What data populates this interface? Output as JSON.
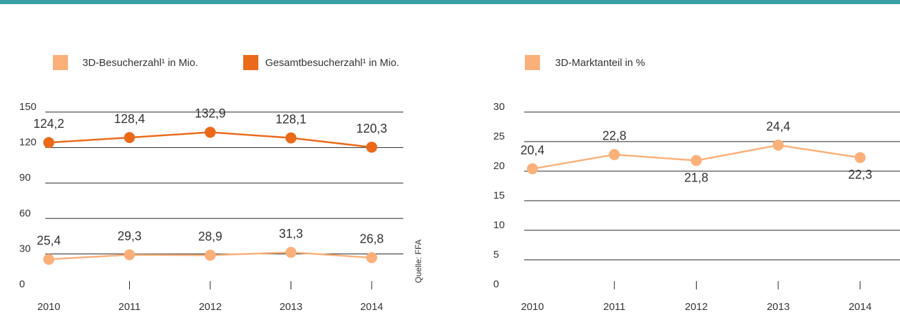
{
  "chart_data": [
    {
      "type": "line",
      "categories": [
        "2010",
        "2011",
        "2012",
        "2013",
        "2014"
      ],
      "series": [
        {
          "name": "3D-Besucherzahl¹ in Mio.",
          "color": "#fbb07a",
          "values": [
            25.4,
            29.3,
            28.9,
            31.3,
            26.8
          ],
          "value_labels": [
            "25,4",
            "29,3",
            "28,9",
            "31,3",
            "26,8"
          ]
        },
        {
          "name": "Gesamtbesucherzahl¹ in Mio.",
          "color": "#ea6a1a",
          "values": [
            124.2,
            128.4,
            132.9,
            128.1,
            120.3
          ],
          "value_labels": [
            "124,2",
            "128,4",
            "132,9",
            "128,1",
            "120,3"
          ]
        }
      ],
      "ylim": [
        0,
        150
      ],
      "yticks": [
        0,
        30,
        60,
        90,
        120,
        150
      ],
      "grid": true,
      "source": "Quelle: FFA"
    },
    {
      "type": "line",
      "categories": [
        "2010",
        "2011",
        "2012",
        "2013",
        "2014"
      ],
      "series": [
        {
          "name": "3D-Marktanteil in %",
          "color": "#fbb07a",
          "values": [
            20.4,
            22.8,
            21.8,
            24.4,
            22.3
          ],
          "value_labels": [
            "20,4",
            "22,8",
            "21,8",
            "24,4",
            "22,3"
          ]
        }
      ],
      "ylim": [
        0,
        30
      ],
      "yticks": [
        0,
        5,
        10,
        15,
        20,
        25,
        30
      ],
      "grid": true
    }
  ]
}
